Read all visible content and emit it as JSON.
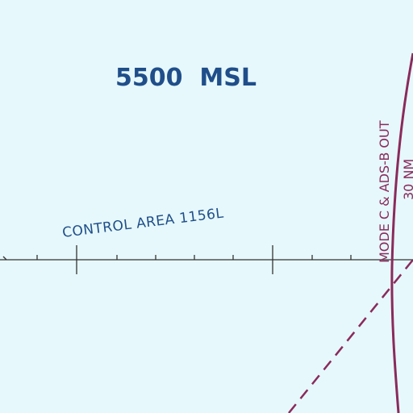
{
  "map": {
    "altitude_label": "5500  MSL",
    "control_area_label": "CONTROL AREA 1156L",
    "veil_label_line1": "MODE C & ADS-B OUT",
    "veil_label_line2": "30 NM",
    "colors": {
      "background": "#e6f8fb",
      "airway_text": "#1f4e8a",
      "tick_line": "#333333",
      "mode_c_boundary": "#8a2a5c"
    }
  }
}
